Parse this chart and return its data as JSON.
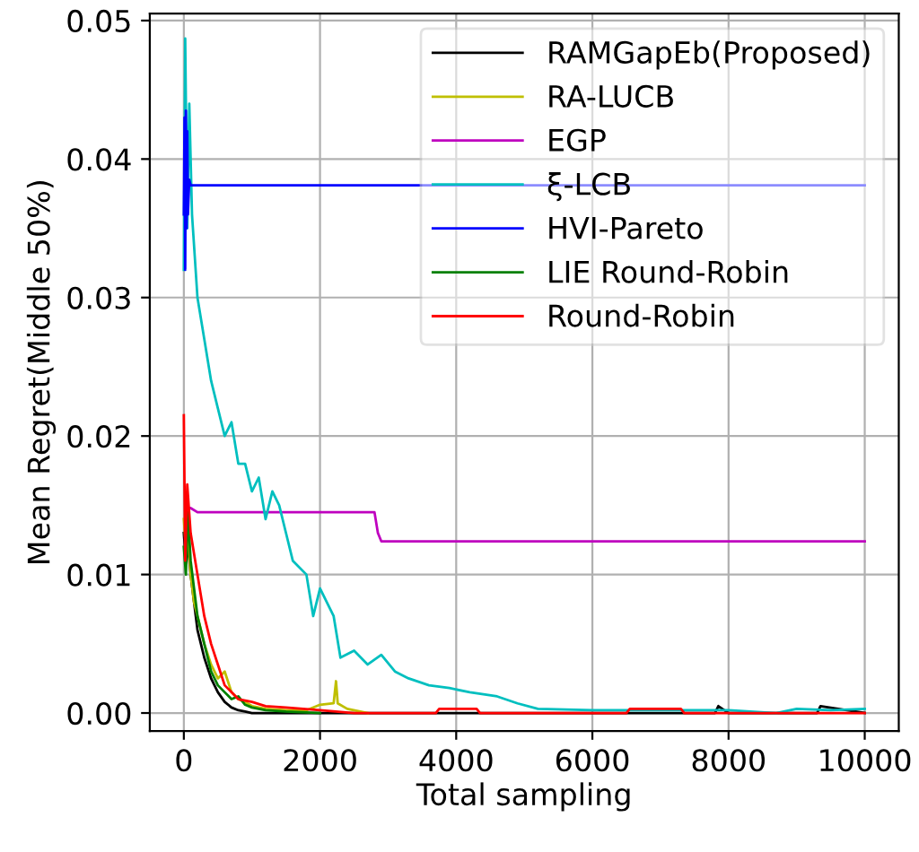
{
  "chart_data": {
    "type": "line",
    "xlabel": "Total sampling",
    "ylabel": "Mean Regret(Middle 50%)",
    "xlim": [
      -500,
      10500
    ],
    "ylim": [
      -0.0013,
      0.0505
    ],
    "xticks": [
      0,
      2000,
      4000,
      6000,
      8000,
      10000
    ],
    "yticks": [
      {
        "value": 0,
        "label": "0.00"
      },
      {
        "value": 0.01,
        "label": "0.01"
      },
      {
        "value": 0.02,
        "label": "0.02"
      },
      {
        "value": 0.03,
        "label": "0.03"
      },
      {
        "value": 0.04,
        "label": "0.04"
      },
      {
        "value": 0.05,
        "label": "0.05"
      }
    ],
    "grid": true,
    "legend": "top right",
    "series": [
      {
        "name": "RAMGapEb(Proposed)",
        "color": "#000000",
        "x": [
          0,
          30,
          60,
          100,
          150,
          200,
          300,
          400,
          500,
          600,
          700,
          800,
          900,
          1000,
          1200,
          1500,
          2000,
          3000,
          4000,
          5000,
          6000,
          7000,
          7800,
          7850,
          8000,
          9000,
          9300,
          9350,
          10000
        ],
        "values": [
          0.013,
          0.011,
          0.012,
          0.01,
          0.008,
          0.006,
          0.004,
          0.0025,
          0.0015,
          0.0008,
          0.0004,
          0.0002,
          0.0001,
          0.0,
          0.0,
          0.0,
          0.0,
          0.0,
          0.0,
          0.0,
          0.0,
          0.0,
          0.0,
          0.0005,
          0.0,
          0.0,
          0.0,
          0.0005,
          0.0
        ]
      },
      {
        "name": "RA-LUCB",
        "color": "#bfbf00",
        "x": [
          0,
          30,
          60,
          100,
          150,
          200,
          300,
          400,
          500,
          600,
          700,
          800,
          900,
          1000,
          1200,
          1500,
          1800,
          2000,
          2200,
          2235,
          2260,
          2400,
          2700
        ],
        "values": [
          0.014,
          0.012,
          0.013,
          0.01,
          0.008,
          0.007,
          0.005,
          0.0035,
          0.0025,
          0.003,
          0.0015,
          0.001,
          0.0008,
          0.0005,
          0.0003,
          0.0002,
          0.0002,
          0.0006,
          0.0007,
          0.0023,
          0.0007,
          0.0003,
          0.0
        ]
      },
      {
        "name": "EGP",
        "color": "#bf00bf",
        "x": [
          20,
          100,
          200,
          1000,
          2000,
          2800,
          2850,
          2900,
          4000,
          6000,
          8000,
          10000
        ],
        "values": [
          0.0148,
          0.0148,
          0.0145,
          0.0145,
          0.0145,
          0.0145,
          0.013,
          0.0124,
          0.0124,
          0.0124,
          0.0124,
          0.0124
        ]
      },
      {
        "name": "ξ-LCB",
        "color": "#00bfbf",
        "x": [
          0,
          20,
          50,
          80,
          120,
          200,
          300,
          400,
          500,
          600,
          700,
          800,
          900,
          1000,
          1100,
          1200,
          1300,
          1400,
          1500,
          1600,
          1800,
          1900,
          2000,
          2200,
          2300,
          2500,
          2700,
          2900,
          3100,
          3300,
          3600,
          3900,
          4200,
          4600,
          4900,
          5200,
          6000,
          7000,
          8000,
          8700,
          9000,
          9500,
          10000
        ],
        "values": [
          0.032,
          0.0487,
          0.035,
          0.044,
          0.036,
          0.03,
          0.027,
          0.024,
          0.022,
          0.02,
          0.021,
          0.018,
          0.018,
          0.016,
          0.017,
          0.014,
          0.016,
          0.015,
          0.013,
          0.011,
          0.01,
          0.007,
          0.009,
          0.007,
          0.004,
          0.0045,
          0.0035,
          0.0042,
          0.003,
          0.0025,
          0.002,
          0.0018,
          0.0015,
          0.0012,
          0.0007,
          0.0003,
          0.0002,
          0.0002,
          0.0002,
          0.0,
          0.0003,
          0.0002,
          0.0003
        ]
      },
      {
        "name": "HVI-Pareto",
        "color": "#0000ff",
        "x": [
          0,
          10,
          20,
          30,
          40,
          50,
          60,
          80,
          100,
          2000,
          10000
        ],
        "values": [
          0.036,
          0.043,
          0.032,
          0.0435,
          0.035,
          0.042,
          0.036,
          0.0385,
          0.0381,
          0.0381,
          0.0381
        ]
      },
      {
        "name": "LIE Round-Robin",
        "color": "#008000",
        "x": [
          0,
          30,
          60,
          100,
          150,
          200,
          300,
          400,
          500,
          600,
          700,
          800,
          900,
          1000,
          1200,
          1500,
          2000
        ],
        "values": [
          0.012,
          0.01,
          0.0145,
          0.011,
          0.009,
          0.007,
          0.005,
          0.003,
          0.002,
          0.0015,
          0.001,
          0.0012,
          0.0006,
          0.0004,
          0.0002,
          0.0001,
          0.0
        ]
      },
      {
        "name": "Round-Robin",
        "color": "#ff0000",
        "x": [
          0,
          20,
          50,
          100,
          200,
          300,
          400,
          500,
          600,
          800,
          1000,
          1200,
          1500,
          2000,
          2500,
          3000,
          3700,
          3750,
          4300,
          4350,
          5000,
          5500,
          6500,
          6550,
          7300,
          7350,
          8000,
          9000,
          10000
        ],
        "values": [
          0.0215,
          0.011,
          0.0165,
          0.013,
          0.01,
          0.007,
          0.005,
          0.0035,
          0.002,
          0.001,
          0.0008,
          0.0005,
          0.0004,
          0.0002,
          0.0,
          0.0,
          0.0,
          0.0003,
          0.0003,
          0.0,
          0.0,
          0.0,
          0.0,
          0.0003,
          0.0003,
          0.0,
          0.0,
          0.0,
          0.0
        ]
      }
    ]
  }
}
